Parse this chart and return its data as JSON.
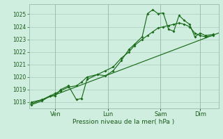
{
  "xlabel": "Pression niveau de la mer( hPa )",
  "bg_color": "#d0eee0",
  "grid_color": "#aaccbb",
  "line_color": "#1a6b1a",
  "ylim": [
    1017.5,
    1025.8
  ],
  "yticks": [
    1018,
    1019,
    1020,
    1021,
    1022,
    1023,
    1024,
    1025
  ],
  "xtick_labels": [
    "Ven",
    "Lun",
    "Sam",
    "Dim"
  ],
  "xtick_positions": [
    1,
    3,
    5,
    6.5
  ],
  "xlim": [
    0,
    7.2
  ],
  "trend_x": [
    0,
    7.2
  ],
  "trend_y": [
    1017.8,
    1023.5
  ],
  "series1_x": [
    0.1,
    0.5,
    0.8,
    1.0,
    1.2,
    1.5,
    1.8,
    2.0,
    2.2,
    2.6,
    2.9,
    3.2,
    3.5,
    3.8,
    4.0,
    4.3,
    4.5,
    4.7,
    4.9,
    5.1,
    5.3,
    5.5,
    5.7,
    5.9,
    6.1,
    6.3,
    6.5,
    6.7,
    7.0
  ],
  "series1_y": [
    1017.8,
    1018.1,
    1018.5,
    1018.5,
    1019.0,
    1019.3,
    1018.2,
    1018.3,
    1019.8,
    1020.2,
    1020.1,
    1020.5,
    1021.3,
    1022.2,
    1022.6,
    1023.2,
    1025.05,
    1025.35,
    1025.05,
    1025.1,
    1023.8,
    1023.65,
    1024.9,
    1024.5,
    1024.2,
    1023.2,
    1023.5,
    1023.3,
    1023.4
  ],
  "series2_x": [
    0.1,
    0.5,
    0.8,
    1.0,
    1.2,
    1.5,
    1.8,
    2.0,
    2.2,
    2.6,
    2.9,
    3.2,
    3.5,
    3.8,
    4.0,
    4.3,
    4.5,
    4.7,
    4.9,
    5.1,
    5.3,
    5.5,
    5.7,
    5.9,
    6.1,
    6.3,
    6.5,
    6.7,
    7.0
  ],
  "series2_y": [
    1018.0,
    1018.2,
    1018.5,
    1018.7,
    1018.9,
    1019.2,
    1019.3,
    1019.6,
    1020.0,
    1020.2,
    1020.5,
    1020.8,
    1021.5,
    1022.0,
    1022.5,
    1023.0,
    1023.3,
    1023.6,
    1023.9,
    1024.0,
    1024.1,
    1024.2,
    1024.3,
    1024.2,
    1024.0,
    1023.5,
    1023.3,
    1023.2,
    1023.3
  ]
}
